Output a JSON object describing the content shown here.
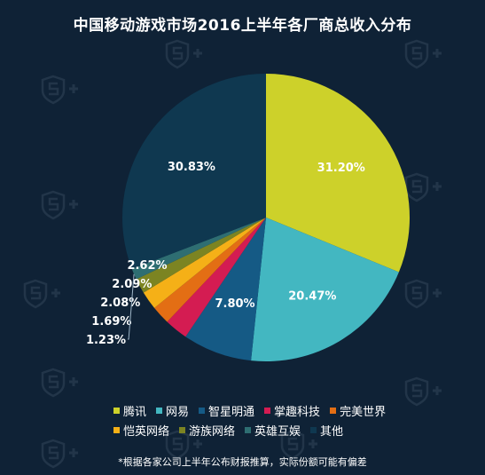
{
  "chart_data": {
    "type": "pie",
    "title": "中国移动游戏市场2016上半年各厂商总收入分布",
    "unit": "%",
    "slices": [
      {
        "label": "腾讯",
        "value": 31.2,
        "display": "31.20%",
        "color": "#cdd12a"
      },
      {
        "label": "网易",
        "value": 20.47,
        "display": "20.47%",
        "color": "#43b7c1"
      },
      {
        "label": "智星明通",
        "value": 7.8,
        "display": "7.80%",
        "color": "#155a85"
      },
      {
        "label": "掌趣科技",
        "value": 2.62,
        "display": "2.62%",
        "color": "#d41c52"
      },
      {
        "label": "完美世界",
        "value": 2.09,
        "display": "2.09%",
        "color": "#e36e14"
      },
      {
        "label": "恺英网络",
        "value": 2.08,
        "display": "2.08%",
        "color": "#f5b017"
      },
      {
        "label": "游族网络",
        "value": 1.69,
        "display": "1.69%",
        "color": "#7c8422"
      },
      {
        "label": "英雄互娱",
        "value": 1.23,
        "display": "1.23%",
        "color": "#2e6e72"
      },
      {
        "label": "其他",
        "value": 30.83,
        "display": "30.83%",
        "color": "#0f3850"
      }
    ],
    "legend_placement": "bottom"
  },
  "footnote": "*根据各家公司上半年公布财报推算，实际份额可能有偏差",
  "watermark_icon": "shield-s-plus-icon"
}
